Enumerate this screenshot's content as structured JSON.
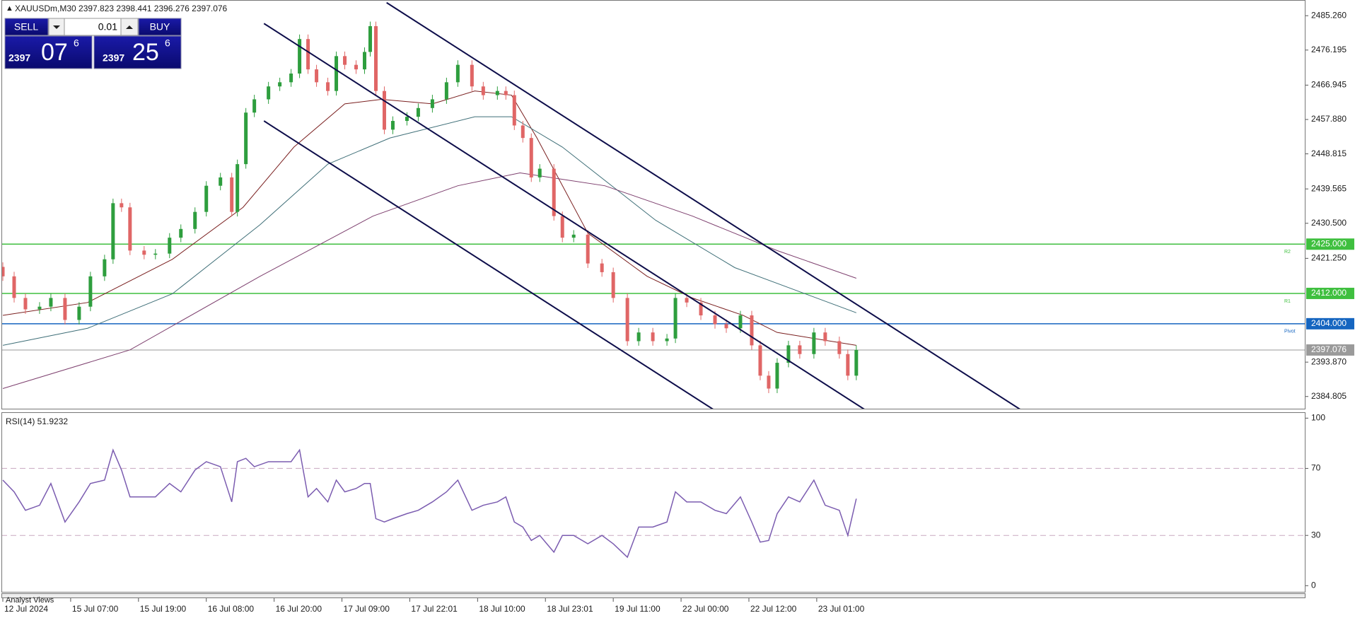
{
  "header": {
    "symbol_info": "XAUUSDm,M30  2397.823 2398.441 2396.276 2397.076"
  },
  "trade_panel": {
    "sell_label": "SELL",
    "buy_label": "BUY",
    "lot": "0.01",
    "sell_price": {
      "big": "2397",
      "main": "07",
      "sup": "6"
    },
    "buy_price": {
      "big": "2397",
      "main": "25",
      "sup": "6"
    }
  },
  "chart_data": [
    {
      "type": "candlestick",
      "up_color": "#2e9e3e",
      "down_color": "#e06666",
      "x": [
        0,
        4,
        8,
        13,
        17,
        22,
        27,
        31,
        36,
        39,
        42,
        45,
        50,
        54,
        59,
        63,
        68,
        72,
        77,
        81,
        83,
        86,
        89,
        94,
        98,
        102,
        105,
        108,
        111,
        115,
        118,
        121,
        125,
        128,
        130,
        132,
        135,
        138,
        143,
        147,
        152,
        157,
        161,
        166,
        170,
        175,
        178,
        181,
        184,
        187,
        190,
        195,
        198,
        202,
        207,
        212,
        216,
        221,
        225,
        230,
        235,
        238,
        242,
        247,
        252,
        256,
        261,
        265,
        268,
        271,
        274,
        278,
        282,
        287,
        291,
        296,
        299,
        302
      ],
      "open": [
        2419.0,
        2416.5,
        2410.8,
        2407.8,
        2408.5,
        2410.8,
        2405.0,
        2408.5,
        2416.5,
        2421.0,
        2435.8,
        2434.7,
        2423.3,
        2422.2,
        2422.5,
        2426.7,
        2429.0,
        2433.5,
        2440.4,
        2442.6,
        2433.5,
        2446.1,
        2459.7,
        2463.2,
        2466.6,
        2467.7,
        2470.0,
        2479.1,
        2471.1,
        2467.7,
        2465.4,
        2474.6,
        2472.3,
        2471.1,
        2475.7,
        2482.5,
        2465.4,
        2455.2,
        2457.5,
        2458.6,
        2460.9,
        2463.2,
        2467.7,
        2472.3,
        2466.6,
        2464.3,
        2465.4,
        2464.3,
        2456.3,
        2453.0,
        2442.6,
        2444.9,
        2432.4,
        2426.7,
        2427.5,
        2419.9,
        2417.6,
        2410.8,
        2399.4,
        2401.7,
        2399.4,
        2400.1,
        2410.8,
        2409.6,
        2406.2,
        2403.9,
        2402.8,
        2406.2,
        2398.3,
        2390.3,
        2386.9,
        2393.7,
        2398.3,
        2396.0,
        2401.7,
        2399.4,
        2396.0,
        2390.3
      ],
      "high": [
        2420.2,
        2417.7,
        2412.0,
        2409.7,
        2412.0,
        2412.0,
        2409.7,
        2417.7,
        2422.2,
        2437.0,
        2437.0,
        2435.9,
        2424.5,
        2423.7,
        2427.9,
        2430.2,
        2434.7,
        2441.6,
        2443.8,
        2443.8,
        2447.3,
        2460.9,
        2464.4,
        2467.8,
        2468.9,
        2471.2,
        2480.3,
        2480.3,
        2472.3,
        2468.9,
        2475.8,
        2475.8,
        2473.5,
        2476.9,
        2483.7,
        2483.7,
        2466.6,
        2458.7,
        2459.8,
        2462.1,
        2464.4,
        2468.9,
        2473.5,
        2473.5,
        2467.8,
        2466.6,
        2466.6,
        2465.5,
        2457.5,
        2454.2,
        2446.1,
        2446.1,
        2433.6,
        2428.7,
        2428.7,
        2421.1,
        2418.8,
        2412.0,
        2402.9,
        2402.9,
        2401.3,
        2412.0,
        2412.0,
        2410.8,
        2407.4,
        2405.1,
        2407.4,
        2407.4,
        2399.5,
        2391.5,
        2394.9,
        2399.5,
        2399.5,
        2402.9,
        2402.9,
        2400.6,
        2397.2,
        2398.3
      ],
      "low": [
        2415.3,
        2409.6,
        2406.6,
        2406.6,
        2407.3,
        2403.8,
        2403.8,
        2407.3,
        2415.3,
        2419.8,
        2433.5,
        2422.1,
        2421.0,
        2421.0,
        2421.3,
        2425.5,
        2427.8,
        2432.3,
        2439.2,
        2432.3,
        2432.3,
        2444.9,
        2458.5,
        2462.0,
        2465.4,
        2466.5,
        2468.8,
        2469.9,
        2466.5,
        2464.2,
        2464.2,
        2471.1,
        2469.9,
        2469.9,
        2474.5,
        2464.2,
        2454.0,
        2454.0,
        2456.3,
        2457.4,
        2459.7,
        2462.0,
        2466.5,
        2465.4,
        2463.1,
        2463.1,
        2463.1,
        2455.1,
        2451.8,
        2441.4,
        2441.4,
        2431.2,
        2425.5,
        2425.5,
        2418.7,
        2416.4,
        2409.6,
        2398.2,
        2398.2,
        2398.2,
        2398.2,
        2398.9,
        2408.4,
        2405.0,
        2402.7,
        2401.6,
        2401.6,
        2397.1,
        2389.1,
        2385.7,
        2385.7,
        2392.5,
        2394.8,
        2394.8,
        2398.2,
        2394.8,
        2389.1,
        2389.1
      ],
      "close": [
        2416.5,
        2410.8,
        2407.8,
        2408.5,
        2410.8,
        2405.0,
        2408.5,
        2416.5,
        2421.0,
        2435.8,
        2434.7,
        2423.3,
        2422.2,
        2422.5,
        2426.7,
        2429.0,
        2433.5,
        2440.4,
        2442.6,
        2433.5,
        2446.1,
        2459.7,
        2463.2,
        2466.6,
        2467.7,
        2470.0,
        2479.1,
        2471.1,
        2467.7,
        2465.4,
        2474.6,
        2472.3,
        2471.1,
        2475.7,
        2482.5,
        2465.4,
        2455.2,
        2457.5,
        2458.6,
        2460.9,
        2463.2,
        2467.7,
        2472.3,
        2466.6,
        2464.3,
        2465.4,
        2464.3,
        2456.3,
        2453.0,
        2442.6,
        2444.9,
        2432.4,
        2426.7,
        2427.5,
        2419.9,
        2417.6,
        2410.8,
        2399.4,
        2401.7,
        2399.4,
        2400.1,
        2410.8,
        2409.6,
        2406.2,
        2403.9,
        2402.8,
        2406.2,
        2398.3,
        2390.3,
        2386.9,
        2393.7,
        2398.3,
        2396.0,
        2401.7,
        2399.4,
        2396.0,
        2390.3,
        2397.076
      ],
      "moving_averages": [
        {
          "color": "#7a1f1f",
          "x": [
            0,
            30,
            60,
            85,
            103,
            121,
            134,
            152,
            167,
            180,
            189,
            207,
            228,
            244,
            262,
            274,
            302
          ],
          "values": [
            2406.2,
            2409.6,
            2421.0,
            2434.7,
            2450.6,
            2462.0,
            2463.2,
            2462.0,
            2465.4,
            2464.3,
            2453.0,
            2427.9,
            2416.5,
            2410.8,
            2406.2,
            2401.7,
            2398.3
          ]
        },
        {
          "color": "#3f6f78",
          "x": [
            0,
            30,
            60,
            91,
            115,
            137,
            167,
            180,
            198,
            231,
            259,
            302
          ],
          "values": [
            2398.3,
            2402.8,
            2411.9,
            2430.1,
            2446.1,
            2453.0,
            2458.6,
            2458.6,
            2450.6,
            2431.3,
            2418.8,
            2406.9
          ]
        },
        {
          "color": "#7d3f6e",
          "x": [
            0,
            45,
            91,
            131,
            161,
            183,
            213,
            244,
            274,
            302
          ],
          "values": [
            2386.9,
            2397.1,
            2416.5,
            2432.4,
            2440.4,
            2443.8,
            2440.4,
            2432.4,
            2423.3,
            2416.0
          ]
        }
      ],
      "trend_lines": [
        {
          "color": "#0d0d4a",
          "x": [
            135.8,
            360
          ],
          "values": [
            2488.7,
            2381.4
          ]
        },
        {
          "color": "#0d0d4a",
          "x": [
            92.4,
            304.9
          ],
          "values": [
            2483.2,
            2381.4
          ]
        },
        {
          "color": "#0d0d4a",
          "x": [
            92.4,
            251.4
          ],
          "values": [
            2457.5,
            2381.4
          ]
        }
      ],
      "levels": [
        {
          "value": 2425.0,
          "label": "2425.000",
          "tag": "R2",
          "color": "#3fbf3f"
        },
        {
          "value": 2412.0,
          "label": "2412.000",
          "tag": "R1",
          "color": "#3fbf3f"
        },
        {
          "value": 2404.0,
          "label": "2404.000",
          "tag": "Pivot",
          "color": "#1565c0"
        },
        {
          "value": 2397.076,
          "label": "2397.076",
          "color": "#9a9a9a"
        }
      ],
      "xlim": [
        0,
        460.7
      ],
      "ylim": [
        2381.4,
        2489.4
      ],
      "yticks": [
        {
          "value": 2485.26,
          "label": "2485.260"
        },
        {
          "value": 2476.195,
          "label": "2476.195"
        },
        {
          "value": 2466.945,
          "label": "2466.945"
        },
        {
          "value": 2457.88,
          "label": "2457.880"
        },
        {
          "value": 2448.815,
          "label": "2448.815"
        },
        {
          "value": 2439.565,
          "label": "2439.565"
        },
        {
          "value": 2430.5,
          "label": "2430.500"
        },
        {
          "value": 2421.25,
          "label": "2421.250"
        },
        {
          "value": 2393.87,
          "label": "2393.870"
        },
        {
          "value": 2384.805,
          "label": "2384.805"
        }
      ],
      "xticks": [
        {
          "value": 0,
          "label": "12 Jul 2024"
        },
        {
          "value": 24,
          "label": "15 Jul 07:00"
        },
        {
          "value": 48,
          "label": "15 Jul 19:00"
        },
        {
          "value": 72,
          "label": "16 Jul 08:00"
        },
        {
          "value": 96,
          "label": "16 Jul 20:00"
        },
        {
          "value": 120,
          "label": "17 Jul 09:00"
        },
        {
          "value": 144,
          "label": "17 Jul 22:01"
        },
        {
          "value": 168,
          "label": "18 Jul 10:00"
        },
        {
          "value": 192,
          "label": "18 Jul 23:01"
        },
        {
          "value": 216,
          "label": "19 Jul 11:00"
        },
        {
          "value": 240,
          "label": "22 Jul 00:00"
        },
        {
          "value": 264,
          "label": "22 Jul 12:00"
        },
        {
          "value": 288,
          "label": "23 Jul 01:00"
        }
      ]
    },
    {
      "type": "line",
      "title": "RSI(14) 51.9232",
      "color": "#7b5cb0",
      "x": [
        0,
        4,
        8,
        13,
        17,
        22,
        27,
        31,
        36,
        39,
        42,
        45,
        50,
        54,
        59,
        63,
        68,
        72,
        77,
        81,
        83,
        86,
        89,
        94,
        98,
        102,
        105,
        108,
        111,
        115,
        118,
        121,
        125,
        128,
        130,
        132,
        135,
        138,
        143,
        147,
        152,
        157,
        161,
        166,
        170,
        175,
        178,
        181,
        184,
        187,
        190,
        195,
        198,
        202,
        207,
        212,
        216,
        221,
        225,
        230,
        235,
        238,
        242,
        247,
        252,
        256,
        261,
        265,
        268,
        271,
        274,
        278,
        282,
        287,
        291,
        296,
        299,
        302
      ],
      "values": [
        63,
        56,
        45,
        48,
        61,
        38,
        50,
        61,
        63,
        81,
        69,
        53,
        53,
        53,
        61,
        56,
        69,
        74,
        71,
        50,
        74,
        76,
        71,
        74,
        74,
        74,
        81,
        53,
        58,
        50,
        63,
        56,
        58,
        61,
        61,
        40,
        38,
        40,
        43,
        45,
        50,
        56,
        63,
        45,
        48,
        50,
        53,
        38,
        35,
        27,
        30,
        20,
        30,
        30,
        25,
        30,
        25,
        17,
        35,
        35,
        38,
        56,
        50,
        50,
        45,
        43,
        53,
        38,
        26,
        27,
        43,
        53,
        50,
        63,
        48,
        45,
        30,
        51.9232
      ],
      "level_lines": [
        30,
        70
      ],
      "xlim": [
        0,
        460.7
      ],
      "ylim": [
        -4.1,
        103.1
      ],
      "yticks": [
        0,
        30,
        70,
        100
      ]
    }
  ],
  "footer_tab": "Analyst Views"
}
